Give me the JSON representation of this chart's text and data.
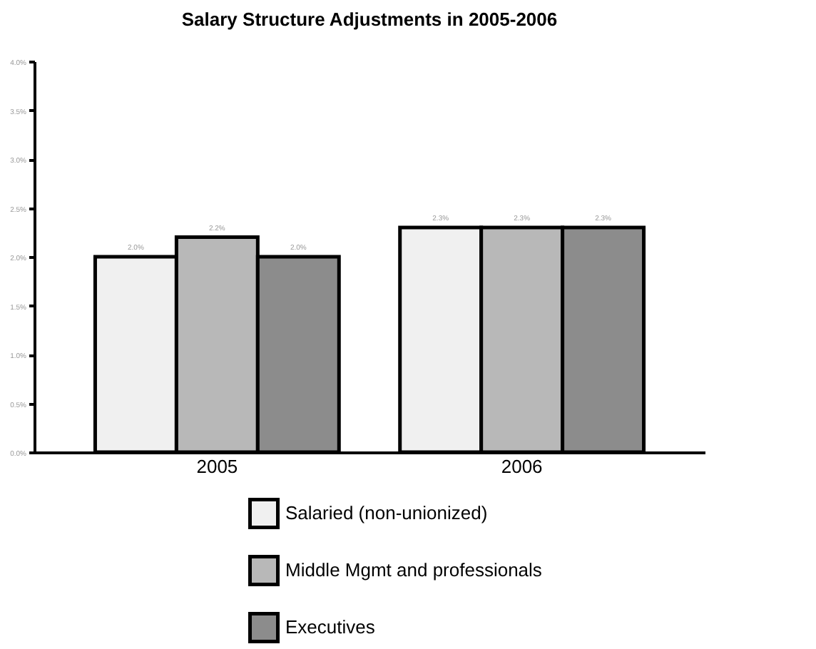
{
  "chart_data": {
    "type": "bar",
    "title": "Salary Structure Adjustments in 2005-2006",
    "categories": [
      "2005",
      "2006"
    ],
    "series": [
      {
        "name": "Salaried (non-unionized)",
        "color": "#f0f0f0",
        "values": [
          2.0,
          2.3
        ],
        "value_labels": [
          "2.0%",
          "2.3%"
        ]
      },
      {
        "name": "Middle Mgmt and professionals",
        "color": "#b8b8b8",
        "values": [
          2.2,
          2.3
        ],
        "value_labels": [
          "2.2%",
          "2.3%"
        ]
      },
      {
        "name": "Executives",
        "color": "#8c8c8c",
        "values": [
          2.0,
          2.3
        ],
        "value_labels": [
          "2.0%",
          "2.3%"
        ]
      }
    ],
    "ylim": [
      0,
      4
    ],
    "yticks": [
      {
        "value": 0,
        "label": "0.0%"
      },
      {
        "value": 0.5,
        "label": "0.5%"
      },
      {
        "value": 1,
        "label": "1.0%"
      },
      {
        "value": 1.5,
        "label": "1.5%"
      },
      {
        "value": 2,
        "label": "2.0%"
      },
      {
        "value": 2.5,
        "label": "2.5%"
      },
      {
        "value": 3,
        "label": "3.0%"
      },
      {
        "value": 3.5,
        "label": "3.5%"
      },
      {
        "value": 4,
        "label": "4.0%"
      }
    ],
    "grid": false,
    "legend": "bottom"
  }
}
